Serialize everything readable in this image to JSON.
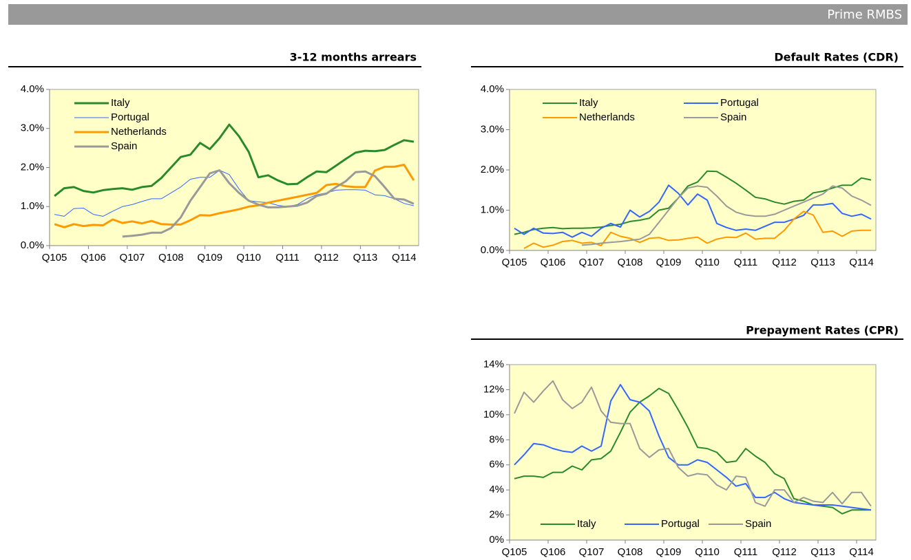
{
  "header": {
    "title": "Prime RMBS"
  },
  "chart_data": [
    {
      "type": "line",
      "title": "3-12 months arrears",
      "categories": [
        "Q105",
        null,
        null,
        null,
        "Q106",
        null,
        null,
        null,
        "Q107",
        null,
        null,
        null,
        "Q108",
        null,
        null,
        null,
        "Q109",
        null,
        null,
        null,
        "Q110",
        null,
        null,
        null,
        "Q111",
        null,
        null,
        null,
        "Q112",
        null,
        null,
        null,
        "Q113",
        null,
        null,
        null,
        "Q114",
        null
      ],
      "ylim": [
        0,
        4
      ],
      "yticks": [
        {
          "value": 0,
          "label": "0.0%"
        },
        {
          "value": 1,
          "label": "1.0%"
        },
        {
          "value": 2,
          "label": "2.0%"
        },
        {
          "value": 3,
          "label": "3.0%"
        },
        {
          "value": 4,
          "label": "4.0%"
        }
      ],
      "legend": "upper left",
      "series": [
        {
          "name": "Italy",
          "color": "#2a8a2a",
          "values": [
            1.27,
            1.47,
            1.5,
            1.4,
            1.36,
            1.42,
            1.45,
            1.47,
            1.43,
            1.5,
            1.53,
            1.73,
            2.0,
            2.27,
            2.33,
            2.63,
            2.47,
            2.75,
            3.1,
            2.8,
            2.4,
            1.75,
            1.8,
            1.67,
            1.57,
            1.58,
            1.75,
            1.9,
            1.88,
            2.05,
            2.22,
            2.38,
            2.43,
            2.42,
            2.45,
            2.58,
            2.7,
            2.66
          ]
        },
        {
          "name": "Portugal",
          "color": "#3366ff",
          "values": [
            0.8,
            0.75,
            0.95,
            0.96,
            0.8,
            0.75,
            0.88,
            1.0,
            1.05,
            1.13,
            1.2,
            1.2,
            1.35,
            1.5,
            1.7,
            1.75,
            1.75,
            1.93,
            1.82,
            1.45,
            1.15,
            1.12,
            1.1,
            1.03,
            1.0,
            1.05,
            1.2,
            1.3,
            1.35,
            1.42,
            1.43,
            1.43,
            1.42,
            1.3,
            1.28,
            1.2,
            1.08,
            1.02
          ]
        },
        {
          "name": "Netherlands",
          "color": "#ff9900",
          "values": [
            0.55,
            0.47,
            0.55,
            0.5,
            0.53,
            0.52,
            0.67,
            0.58,
            0.62,
            0.57,
            0.63,
            0.55,
            0.54,
            0.54,
            0.65,
            0.78,
            0.77,
            0.83,
            0.88,
            0.93,
            1.0,
            1.03,
            1.1,
            1.15,
            1.2,
            1.25,
            1.3,
            1.35,
            1.55,
            1.58,
            1.52,
            1.5,
            1.5,
            1.92,
            2.02,
            2.02,
            2.07,
            1.67
          ]
        },
        {
          "name": "Spain",
          "color": "#999999",
          "values": [
            null,
            null,
            null,
            null,
            null,
            null,
            null,
            0.23,
            0.25,
            0.28,
            0.33,
            0.33,
            0.45,
            0.72,
            1.15,
            1.5,
            1.85,
            1.93,
            1.6,
            1.35,
            1.15,
            1.05,
            0.98,
            0.98,
            1.0,
            1.02,
            1.1,
            1.27,
            1.33,
            1.5,
            1.65,
            1.88,
            1.9,
            1.78,
            1.5,
            1.2,
            1.18,
            1.07
          ]
        }
      ]
    },
    {
      "type": "line",
      "title": "Default Rates (CDR)",
      "categories": [
        "Q105",
        null,
        null,
        null,
        "Q106",
        null,
        null,
        null,
        "Q107",
        null,
        null,
        null,
        "Q108",
        null,
        null,
        null,
        "Q109",
        null,
        null,
        null,
        "Q110",
        null,
        null,
        null,
        "Q111",
        null,
        null,
        null,
        "Q112",
        null,
        null,
        null,
        "Q113",
        null,
        null,
        null,
        "Q114",
        null
      ],
      "ylim": [
        0,
        4
      ],
      "yticks": [
        {
          "value": 0,
          "label": "0.0%"
        },
        {
          "value": 1,
          "label": "1.0%"
        },
        {
          "value": 2,
          "label": "2.0%"
        },
        {
          "value": 3,
          "label": "3.0%"
        },
        {
          "value": 4,
          "label": "4.0%"
        }
      ],
      "legend": "upper left",
      "series": [
        {
          "name": "Italy",
          "color": "#2a8a2a",
          "values": [
            0.4,
            0.45,
            0.52,
            0.55,
            0.57,
            0.54,
            0.55,
            0.55,
            0.56,
            0.58,
            0.62,
            0.65,
            0.72,
            0.75,
            0.8,
            1.0,
            1.05,
            1.3,
            1.6,
            1.7,
            1.97,
            1.96,
            1.82,
            1.67,
            1.5,
            1.32,
            1.28,
            1.2,
            1.15,
            1.22,
            1.25,
            1.43,
            1.47,
            1.55,
            1.62,
            1.62,
            1.8,
            1.75
          ]
        },
        {
          "name": "Portugal",
          "color": "#3366ff",
          "values": [
            0.55,
            0.4,
            0.55,
            0.43,
            0.42,
            0.45,
            0.33,
            0.45,
            0.35,
            0.55,
            0.67,
            0.58,
            1.0,
            0.83,
            0.97,
            1.2,
            1.62,
            1.42,
            1.13,
            1.4,
            1.25,
            0.67,
            0.57,
            0.5,
            0.53,
            0.5,
            0.6,
            0.7,
            0.7,
            0.78,
            0.87,
            1.13,
            1.13,
            1.17,
            0.92,
            0.85,
            0.9,
            0.78
          ]
        },
        {
          "name": "Netherlands",
          "color": "#ff9900",
          "values": [
            null,
            0.05,
            0.18,
            0.08,
            0.13,
            0.22,
            0.25,
            0.18,
            0.2,
            0.12,
            0.45,
            0.35,
            0.3,
            0.2,
            0.3,
            0.32,
            0.25,
            0.26,
            0.3,
            0.33,
            0.18,
            0.28,
            0.33,
            0.32,
            0.43,
            0.28,
            0.3,
            0.3,
            0.5,
            0.78,
            0.97,
            0.88,
            0.45,
            0.48,
            0.35,
            0.48,
            0.5,
            0.5
          ]
        },
        {
          "name": "Spain",
          "color": "#999999",
          "values": [
            null,
            null,
            null,
            null,
            null,
            null,
            null,
            0.13,
            0.15,
            0.18,
            0.2,
            0.22,
            0.25,
            0.28,
            0.4,
            0.7,
            1.0,
            1.3,
            1.55,
            1.6,
            1.57,
            1.35,
            1.1,
            0.95,
            0.88,
            0.85,
            0.85,
            0.9,
            1.0,
            1.1,
            1.2,
            1.3,
            1.4,
            1.6,
            1.55,
            1.35,
            1.25,
            1.12
          ]
        }
      ]
    },
    {
      "type": "line",
      "title": "Prepayment Rates (CPR)",
      "categories": [
        "Q105",
        null,
        null,
        null,
        "Q106",
        null,
        null,
        null,
        "Q107",
        null,
        null,
        null,
        "Q108",
        null,
        null,
        null,
        "Q109",
        null,
        null,
        null,
        "Q110",
        null,
        null,
        null,
        "Q111",
        null,
        null,
        null,
        "Q112",
        null,
        null,
        null,
        "Q113",
        null,
        null,
        null,
        "Q114",
        null
      ],
      "ylim": [
        0,
        14
      ],
      "yticks": [
        {
          "value": 0,
          "label": "0%"
        },
        {
          "value": 2,
          "label": "2%"
        },
        {
          "value": 4,
          "label": "4%"
        },
        {
          "value": 6,
          "label": "6%"
        },
        {
          "value": 8,
          "label": "8%"
        },
        {
          "value": 10,
          "label": "10%"
        },
        {
          "value": 12,
          "label": "12%"
        },
        {
          "value": 14,
          "label": "14%"
        }
      ],
      "legend": "lower center",
      "series": [
        {
          "name": "Italy",
          "color": "#2a8a2a",
          "values": [
            4.9,
            5.1,
            5.1,
            5.0,
            5.4,
            5.4,
            5.9,
            5.6,
            6.4,
            6.5,
            7.1,
            8.6,
            10.2,
            11.0,
            11.5,
            12.1,
            11.7,
            10.4,
            9.0,
            7.4,
            7.3,
            7.0,
            6.2,
            6.3,
            7.3,
            6.7,
            6.2,
            5.3,
            4.9,
            3.3,
            3.1,
            2.8,
            2.7,
            2.6,
            2.1,
            2.4,
            2.4,
            2.4
          ]
        },
        {
          "name": "Portugal",
          "color": "#3366ff",
          "values": [
            6.0,
            6.8,
            7.7,
            7.6,
            7.3,
            7.1,
            7.0,
            7.5,
            7.1,
            7.5,
            11.1,
            12.4,
            11.2,
            11.0,
            10.3,
            8.3,
            6.6,
            6.0,
            6.0,
            6.4,
            6.2,
            5.6,
            5.0,
            4.3,
            4.5,
            3.4,
            3.4,
            3.8,
            3.3,
            3.0,
            2.9,
            2.8,
            2.8,
            2.8,
            2.7,
            2.6,
            2.5,
            2.4
          ]
        },
        {
          "name": "Spain",
          "color": "#999999",
          "values": [
            10.1,
            11.8,
            11.0,
            11.9,
            12.7,
            11.2,
            10.5,
            11.0,
            12.2,
            10.3,
            9.4,
            9.3,
            9.3,
            7.3,
            6.6,
            7.2,
            7.3,
            5.8,
            5.1,
            5.3,
            5.2,
            4.4,
            4.0,
            5.1,
            5.0,
            3.0,
            2.7,
            4.0,
            4.0,
            3.0,
            3.4,
            3.1,
            3.0,
            3.8,
            2.9,
            3.8,
            3.8,
            2.7
          ]
        }
      ]
    }
  ]
}
